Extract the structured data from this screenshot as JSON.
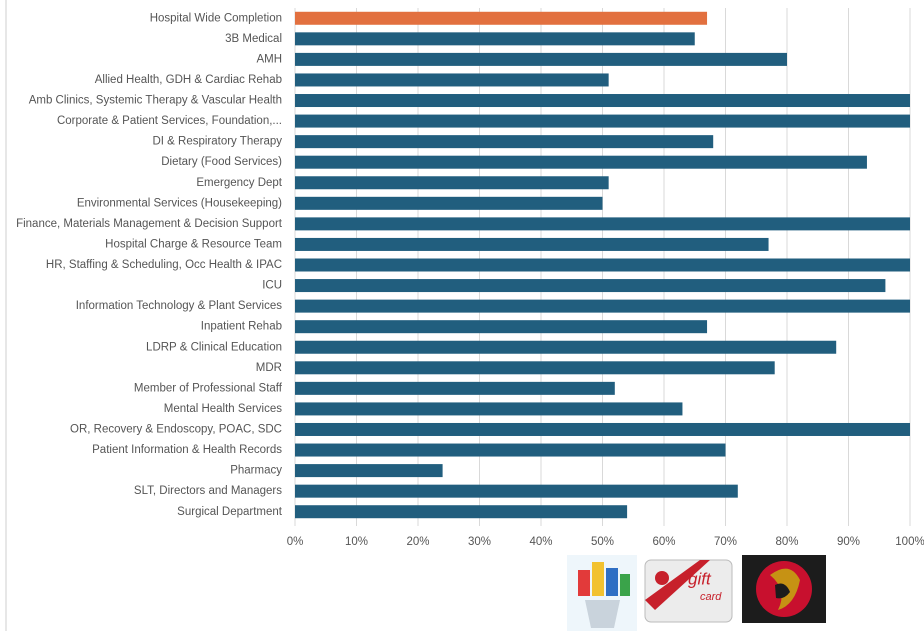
{
  "chart_data": {
    "type": "barh",
    "categories": [
      "Hospital Wide Completion",
      "3B Medical",
      "AMH",
      "Allied Health, GDH & Cardiac Rehab",
      "Amb Clinics, Systemic Therapy & Vascular Health",
      "Corporate & Patient Services, Foundation,...",
      "DI & Respiratory Therapy",
      "Dietary (Food Services)",
      "Emergency Dept",
      "Environmental Services (Housekeeping)",
      "Finance, Materials Management & Decision Support",
      "Hospital Charge & Resource Team",
      "HR, Staffing & Scheduling, Occ Health & IPAC",
      "ICU",
      "Information Technology & Plant Services",
      "Inpatient Rehab",
      "LDRP & Clinical Education",
      "MDR",
      "Member of Professional Staff",
      "Mental Health Services",
      "OR, Recovery & Endoscopy, POAC, SDC",
      "Patient Information & Health Records",
      "Pharmacy",
      "SLT, Directors and Managers",
      "Surgical Department"
    ],
    "values": [
      67,
      65,
      80,
      51,
      100,
      100,
      68,
      93,
      51,
      50,
      100,
      77,
      100,
      96,
      100,
      67,
      88,
      78,
      52,
      63,
      100,
      70,
      24,
      72,
      54
    ],
    "colors": [
      "#e2703f",
      "#215e7e",
      "#215e7e",
      "#215e7e",
      "#215e7e",
      "#215e7e",
      "#215e7e",
      "#215e7e",
      "#215e7e",
      "#215e7e",
      "#215e7e",
      "#215e7e",
      "#215e7e",
      "#215e7e",
      "#215e7e",
      "#215e7e",
      "#215e7e",
      "#215e7e",
      "#215e7e",
      "#215e7e",
      "#215e7e",
      "#215e7e",
      "#215e7e",
      "#215e7e",
      "#215e7e"
    ],
    "xlim": [
      0,
      100
    ],
    "xticks": [
      {
        "value": 0,
        "label": "0%"
      },
      {
        "value": 10,
        "label": "10%"
      },
      {
        "value": 20,
        "label": "20%"
      },
      {
        "value": 30,
        "label": "30%"
      },
      {
        "value": 40,
        "label": "40%"
      },
      {
        "value": 50,
        "label": "50%"
      },
      {
        "value": 60,
        "label": "60%"
      },
      {
        "value": 70,
        "label": "70%"
      },
      {
        "value": 80,
        "label": "80%"
      },
      {
        "value": 90,
        "label": "90%"
      },
      {
        "value": 100,
        "label": "100%"
      }
    ],
    "grid": true
  },
  "gift_card_text": [
    "gift",
    "card"
  ]
}
